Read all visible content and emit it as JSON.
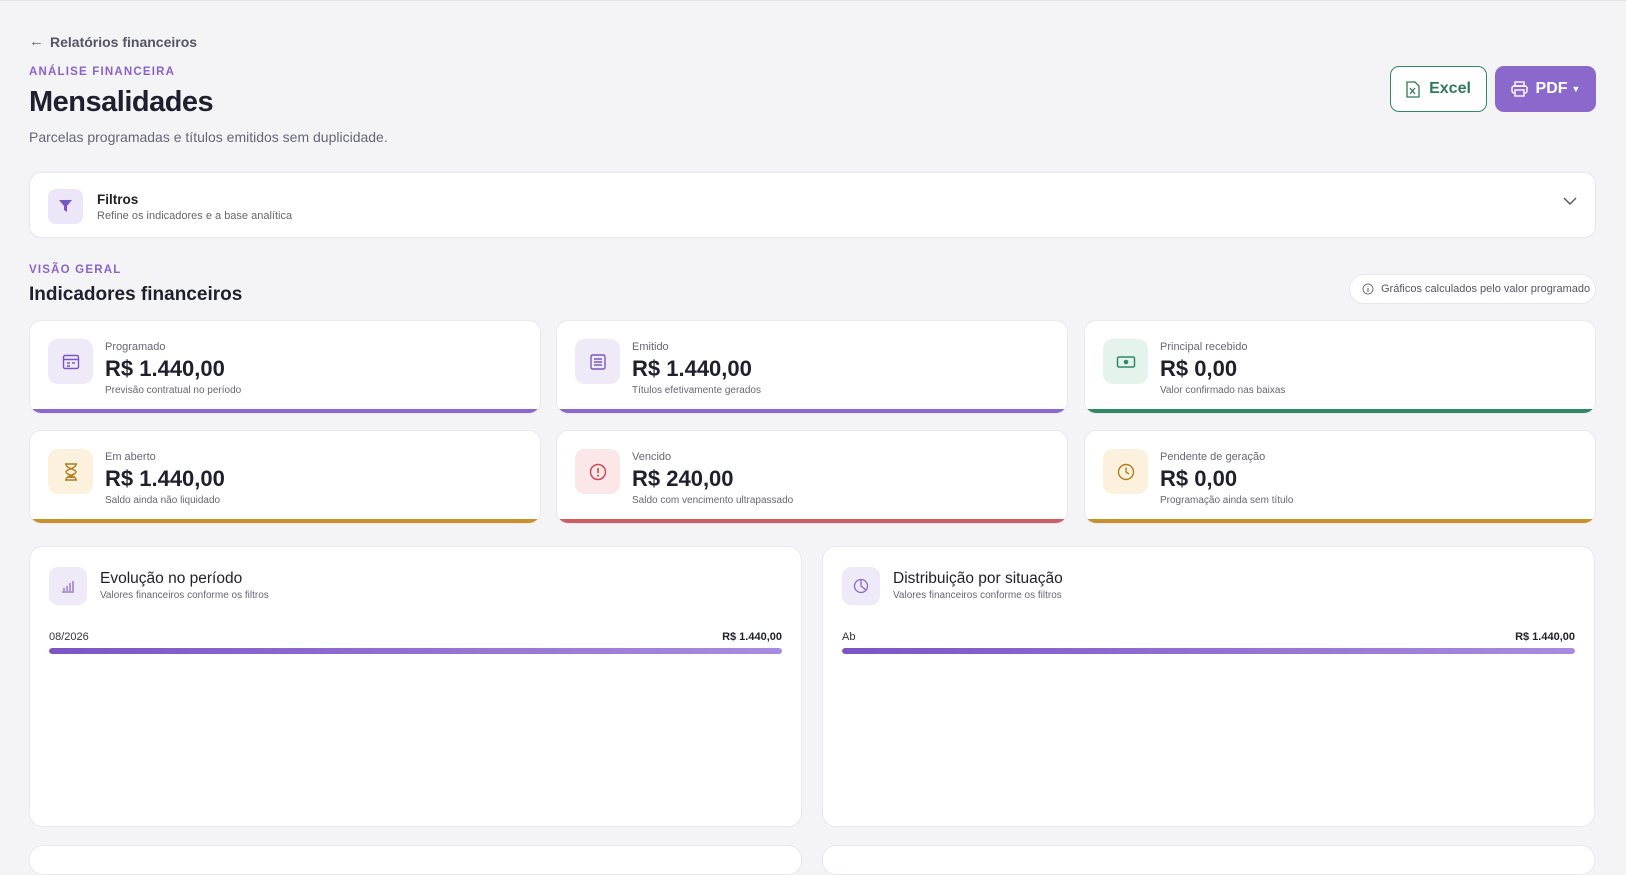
{
  "header": {
    "back_label": "Relatórios financeiros",
    "eyebrow": "ANÁLISE FINANCEIRA",
    "title": "Mensalidades",
    "subtitle": "Parcelas programadas e títulos emitidos sem duplicidade."
  },
  "actions": {
    "excel_label": "Excel",
    "pdf_label": "PDF"
  },
  "filters": {
    "title": "Filtros",
    "subtitle": "Refine os indicadores e a base analítica"
  },
  "overview": {
    "eyebrow": "VISÃO GERAL",
    "title": "Indicadores financeiros",
    "note": "Gráficos calculados pelo valor programado"
  },
  "cards": [
    {
      "label": "Programado",
      "value": "R$ 1.440,00",
      "sub": "Previsão contratual no período",
      "icon": "calendar-icon",
      "color": "#8b68cc",
      "bg": "#efeaf8"
    },
    {
      "label": "Emitido",
      "value": "R$ 1.440,00",
      "sub": "Títulos efetivamente gerados",
      "icon": "document-icon",
      "color": "#8b68cc",
      "bg": "#efeaf8"
    },
    {
      "label": "Principal recebido",
      "value": "R$ 0,00",
      "sub": "Valor confirmado nas baixas",
      "icon": "cash-icon",
      "color": "#2f8a63",
      "bg": "#e4f4ec"
    },
    {
      "label": "Em aberto",
      "value": "R$ 1.440,00",
      "sub": "Saldo ainda não liquidado",
      "icon": "hourglass-icon",
      "color": "#c8922a",
      "bg": "#fbf1dc"
    },
    {
      "label": "Vencido",
      "value": "R$ 240,00",
      "sub": "Saldo com vencimento ultrapassado",
      "icon": "alert-icon",
      "color": "#d25c64",
      "bg": "#fbe6e8"
    },
    {
      "label": "Pendente de geração",
      "value": "R$ 0,00",
      "sub": "Programação ainda sem título",
      "icon": "clock-icon",
      "color": "#c8922a",
      "bg": "#fbf1dc"
    }
  ],
  "panels": {
    "evolution": {
      "title": "Evolução no período",
      "subtitle": "Valores financeiros conforme os filtros",
      "rows": [
        {
          "label": "08/2026",
          "value": "R$ 1.440,00",
          "fraction": 1.0
        }
      ]
    },
    "distribution": {
      "title": "Distribuição por situação",
      "subtitle": "Valores financeiros conforme os filtros",
      "rows": [
        {
          "label": "Ab",
          "value": "R$ 1.440,00",
          "fraction": 1.0
        }
      ]
    }
  }
}
